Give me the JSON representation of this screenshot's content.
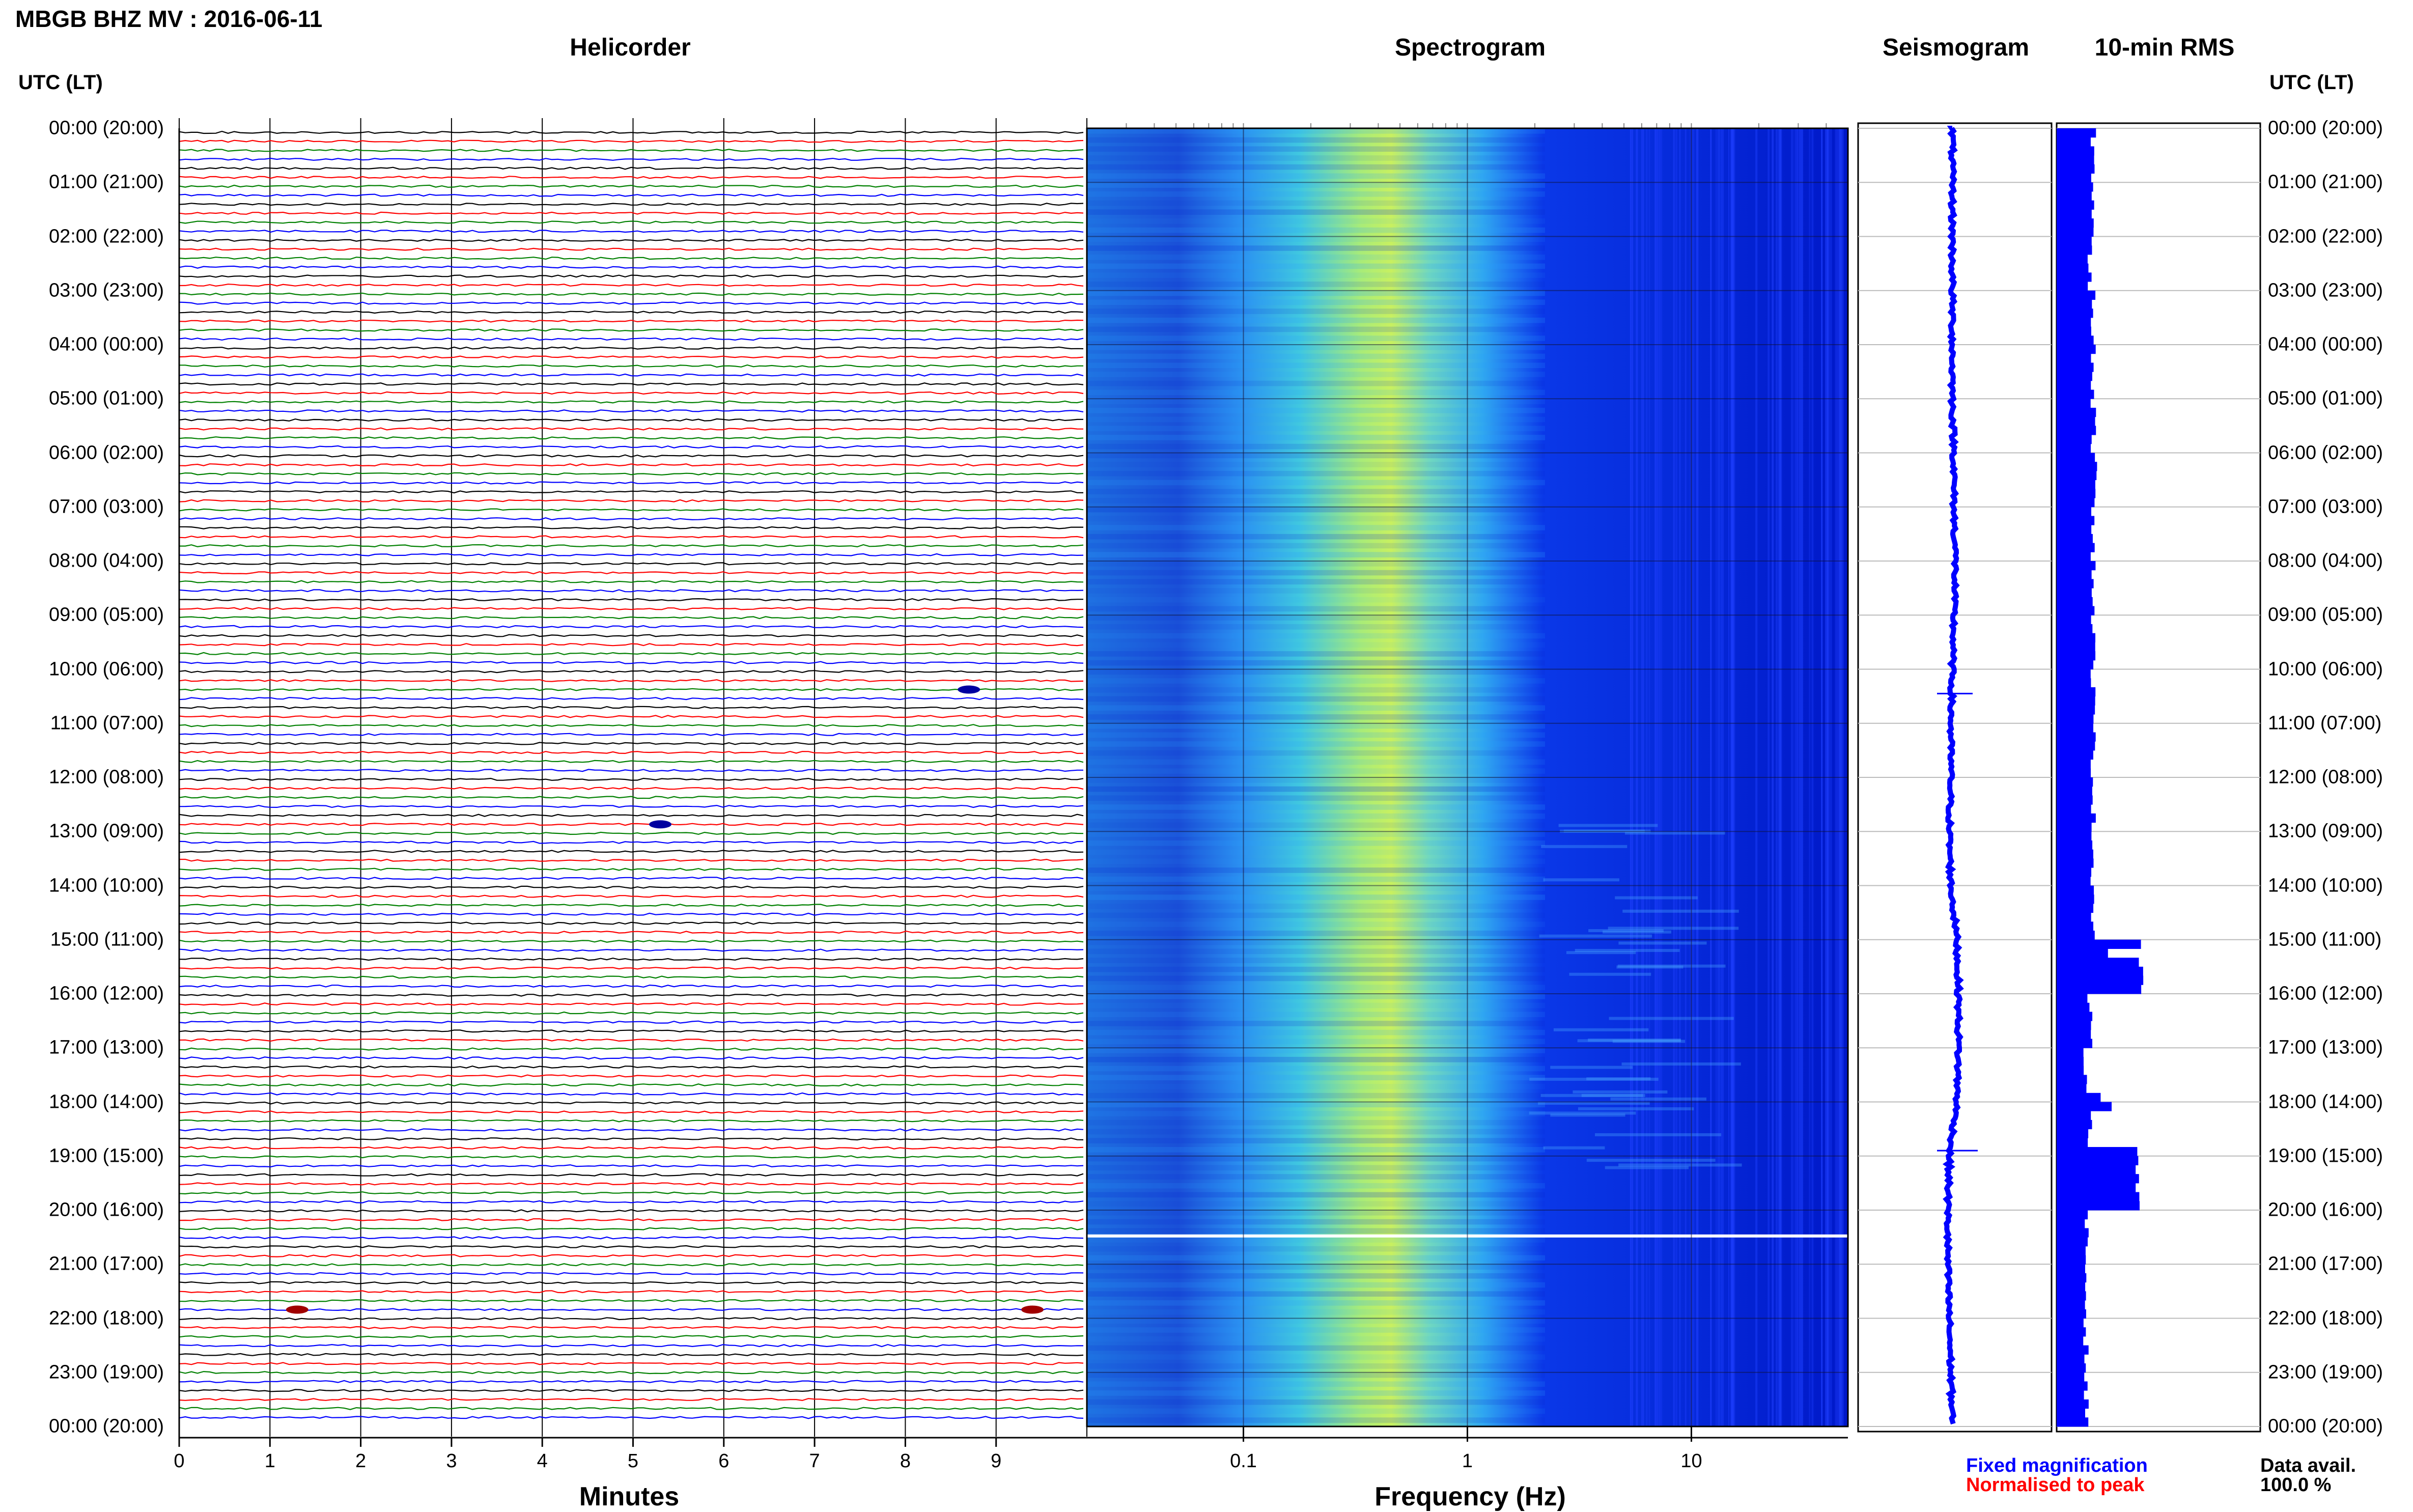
{
  "header": {
    "title": "MBGB BHZ MV : 2016-06-11"
  },
  "panels": {
    "helicorder": "Helicorder",
    "spectrogram": "Spectrogram",
    "seismogram": "Seismogram",
    "rms": "10-min RMS"
  },
  "time_axis_label": "UTC (LT)",
  "time_labels": [
    "00:00 (20:00)",
    "01:00 (21:00)",
    "02:00 (22:00)",
    "03:00 (23:00)",
    "04:00 (00:00)",
    "05:00 (01:00)",
    "06:00 (02:00)",
    "07:00 (03:00)",
    "08:00 (04:00)",
    "09:00 (05:00)",
    "10:00 (06:00)",
    "11:00 (07:00)",
    "12:00 (08:00)",
    "13:00 (09:00)",
    "14:00 (10:00)",
    "15:00 (11:00)",
    "16:00 (12:00)",
    "17:00 (13:00)",
    "18:00 (14:00)",
    "19:00 (15:00)",
    "20:00 (16:00)",
    "21:00 (17:00)",
    "22:00 (18:00)",
    "23:00 (19:00)",
    "00:00 (20:00)"
  ],
  "x_axes": {
    "minutes_label": "Minutes",
    "minutes_ticks": [
      "0",
      "1",
      "2",
      "3",
      "4",
      "5",
      "6",
      "7",
      "8",
      "9"
    ],
    "frequency_label": "Frequency (Hz)",
    "frequency_ticks": [
      "0.1",
      "1",
      "10"
    ]
  },
  "legend": {
    "fixed": "Fixed magnification",
    "normalised": "Normalised to peak"
  },
  "availability": {
    "label": "Data avail.",
    "value": "100.0 %"
  },
  "colors": {
    "trace_cycle": [
      "#000000",
      "#ff0000",
      "#008000",
      "#0000ff"
    ],
    "seismogram": "#0000ff",
    "rms": "#0000ff",
    "spectrogram_low": "#0000aa",
    "spectrogram_high": "#c8f060"
  },
  "chart_data": [
    {
      "type": "line",
      "title": "Helicorder",
      "xlabel": "Minutes",
      "xlim": [
        0,
        10
      ],
      "ylabel": "UTC (LT)",
      "rows": 144,
      "row_minutes": 10,
      "events": [
        {
          "row": 62,
          "minute": 8.7,
          "color": "blue"
        },
        {
          "row": 77,
          "minute": 5.3,
          "color": "blue"
        },
        {
          "row": 131,
          "minute": 1.3,
          "color": "red"
        },
        {
          "row": 131,
          "minute": 9.4,
          "color": "red"
        }
      ]
    },
    {
      "type": "heatmap",
      "title": "Spectrogram",
      "xlabel": "Frequency (Hz)",
      "xscale": "log",
      "xlim": [
        0.02,
        50
      ],
      "peak_frequency_hz": 0.5,
      "ylabel": "UTC (LT)"
    },
    {
      "type": "line",
      "title": "Seismogram",
      "description_hours": [
        0,
        24
      ],
      "offsets": [
        0.0,
        0.0,
        0.0,
        0.0,
        0.0,
        0.0,
        0.05,
        0.05,
        0.1,
        0.05,
        0.0,
        -0.05,
        -0.05,
        -0.1,
        -0.05,
        0.15,
        0.2,
        0.2,
        0.15,
        -0.1,
        -0.15,
        -0.15,
        -0.1,
        -0.05,
        0.0
      ]
    },
    {
      "type": "bar",
      "title": "10-min RMS",
      "hourly_values": [
        1.0,
        1.0,
        0.9,
        1.0,
        1.0,
        1.0,
        1.1,
        1.0,
        1.0,
        1.0,
        1.0,
        1.0,
        1.0,
        1.0,
        1.0,
        2.3,
        0.9,
        0.8,
        0.9,
        2.2,
        0.8,
        0.8,
        0.8,
        0.8,
        0.8
      ],
      "spikes": [
        {
          "hour": 15.0,
          "value": 2.3
        },
        {
          "hour": 18.95,
          "value": 2.2
        }
      ]
    }
  ]
}
